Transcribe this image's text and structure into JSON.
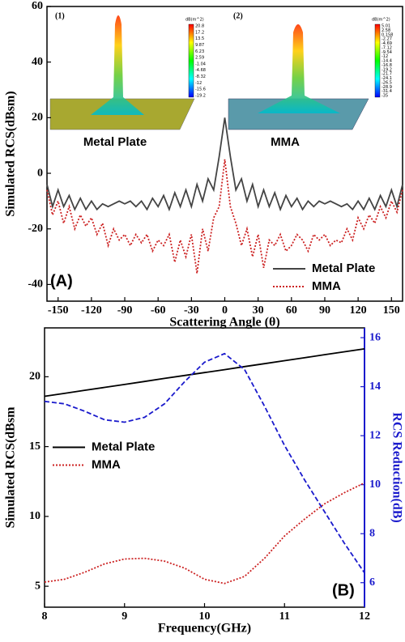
{
  "chart_data": [
    {
      "type": "line",
      "panel_label": "(A)",
      "xlabel": "Scattering Angle (θ)",
      "ylabel": "Simulated RCS(dBsm)",
      "xlim": [
        -160,
        160
      ],
      "xticks": [
        -150,
        -120,
        -90,
        -60,
        -30,
        0,
        30,
        60,
        90,
        120,
        150
      ],
      "ylim": [
        -46,
        60
      ],
      "yticks": [
        -40,
        -20,
        0,
        20,
        40,
        60
      ],
      "legend": "lower right",
      "x": [
        -160,
        -155,
        -150,
        -145,
        -140,
        -135,
        -130,
        -125,
        -120,
        -115,
        -110,
        -105,
        -100,
        -95,
        -90,
        -85,
        -80,
        -75,
        -70,
        -65,
        -60,
        -55,
        -50,
        -45,
        -40,
        -35,
        -30,
        -25,
        -20,
        -15,
        -10,
        -5,
        0,
        5,
        10,
        15,
        20,
        25,
        30,
        35,
        40,
        45,
        50,
        55,
        60,
        65,
        70,
        75,
        80,
        85,
        90,
        95,
        100,
        105,
        110,
        115,
        120,
        125,
        130,
        135,
        140,
        145,
        150,
        155,
        160
      ],
      "series": [
        {
          "name": "Metal Plate",
          "color": "#444444",
          "style": "solid",
          "values": [
            -4,
            -12,
            -6,
            -12,
            -8,
            -13,
            -9,
            -13,
            -10,
            -13,
            -11,
            -12,
            -11,
            -10,
            -11,
            -10,
            -12,
            -10,
            -13,
            -9,
            -12,
            -8,
            -13,
            -7,
            -12,
            -6,
            -12,
            -4,
            -10,
            -2,
            -6,
            6,
            20,
            6,
            -6,
            -2,
            -10,
            -4,
            -12,
            -6,
            -12,
            -7,
            -13,
            -8,
            -12,
            -9,
            -13,
            -10,
            -12,
            -10,
            -11,
            -10,
            -11,
            -12,
            -11,
            -13,
            -10,
            -13,
            -9,
            -13,
            -8,
            -12,
            -6,
            -12,
            -4
          ]
        },
        {
          "name": "MMA",
          "color": "#cc2222",
          "style": "dotted",
          "values": [
            -6,
            -15,
            -10,
            -18,
            -12,
            -20,
            -15,
            -19,
            -16,
            -22,
            -18,
            -26,
            -20,
            -24,
            -22,
            -26,
            -22,
            -25,
            -22,
            -28,
            -24,
            -26,
            -22,
            -32,
            -24,
            -30,
            -22,
            -36,
            -20,
            -28,
            -16,
            -12,
            5,
            -12,
            -18,
            -26,
            -20,
            -30,
            -22,
            -34,
            -24,
            -26,
            -22,
            -28,
            -26,
            -22,
            -24,
            -28,
            -22,
            -24,
            -22,
            -26,
            -24,
            -25,
            -20,
            -24,
            -16,
            -20,
            -15,
            -18,
            -12,
            -16,
            -10,
            -14,
            -6
          ]
        }
      ],
      "insets": [
        {
          "label": "(1)",
          "caption": "Metal Plate",
          "unit": "dB(m^2)",
          "colorbar": [
            "20.8",
            "17.2",
            "13.5",
            "9.87",
            "6.23",
            "2.59",
            "-1.04",
            "-4.68",
            "-8.32",
            "-12",
            "-15.6",
            "-19.2"
          ]
        },
        {
          "label": "(2)",
          "caption": "MMA",
          "unit": "dB(m^2)",
          "colorbar": [
            "5.01",
            "2.58",
            "0.158",
            "-2.27",
            "-4.69",
            "-7.12",
            "-9.54",
            "-12",
            "-14.4",
            "-16.8",
            "-19.2",
            "-21.7",
            "-24.1",
            "-26.5",
            "-28.9",
            "-31.4",
            "-35"
          ]
        }
      ]
    },
    {
      "type": "line",
      "panel_label": "(B)",
      "xlabel": "Frequency(GHz)",
      "ylabel": "Simulated RCS(dBsm",
      "y2label": "RCS Reduction(dB)",
      "y2color": "#1a1acc",
      "xlim": [
        8,
        12
      ],
      "xticks": [
        8,
        9,
        10,
        11,
        12
      ],
      "ylim": [
        3.5,
        23.5
      ],
      "yticks": [
        5,
        10,
        15,
        20
      ],
      "y2lim": [
        5,
        16.4
      ],
      "y2ticks": [
        6,
        8,
        10,
        12,
        14,
        16
      ],
      "legend": "center left",
      "x": [
        8,
        8.25,
        8.5,
        8.75,
        9,
        9.25,
        9.5,
        9.75,
        10,
        10.25,
        10.5,
        10.75,
        11,
        11.25,
        11.5,
        11.75,
        12
      ],
      "series": [
        {
          "name": "Metal Plate",
          "color": "#000000",
          "style": "solid",
          "values": [
            18.6,
            18.81,
            19.03,
            19.24,
            19.45,
            19.66,
            19.88,
            20.09,
            20.3,
            20.51,
            20.73,
            20.94,
            21.15,
            21.36,
            21.58,
            21.79,
            22.0
          ]
        },
        {
          "name": "MMA",
          "color": "#cc2222",
          "style": "dotted",
          "values": [
            5.3,
            5.5,
            6.0,
            6.6,
            6.95,
            7.0,
            6.8,
            6.3,
            5.5,
            5.2,
            5.7,
            7.0,
            8.6,
            9.8,
            10.9,
            11.7,
            12.4
          ]
        },
        {
          "color": "#1a1acc",
          "style": "dashed",
          "axis": "y2",
          "values": [
            13.4,
            13.3,
            13.0,
            12.65,
            12.55,
            12.75,
            13.3,
            14.2,
            15.0,
            15.35,
            14.7,
            13.2,
            11.6,
            10.2,
            8.9,
            7.6,
            6.4
          ]
        }
      ]
    }
  ]
}
